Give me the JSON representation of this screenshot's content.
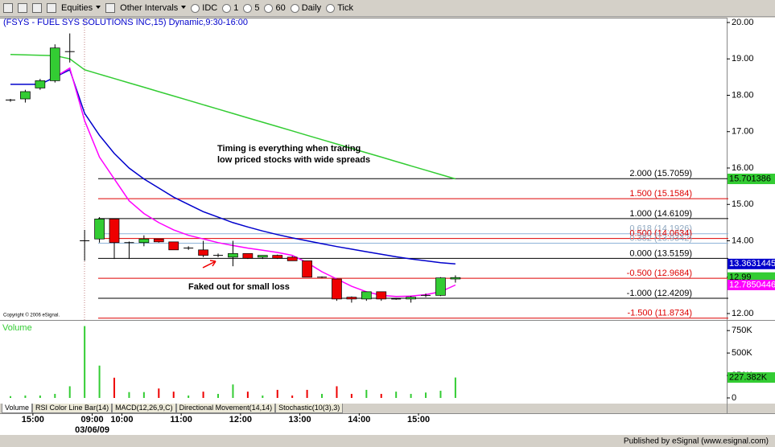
{
  "toolbar": {
    "items": [
      "Equities",
      "Other Intervals",
      "IDC",
      "1",
      "5",
      "60",
      "Daily",
      "Tick"
    ]
  },
  "chart_data": [
    {
      "type": "candlestick",
      "title": "(FSYS - FUEL SYS SOLUTIONS INC,15) Dynamic,9:30-16:00",
      "categories": [
        null,
        null,
        "15:00",
        null,
        null,
        null,
        "09:00",
        null,
        "10:00",
        null,
        null,
        null,
        "11:00",
        null,
        null,
        null,
        "12:00",
        null,
        null,
        null,
        "13:00",
        null,
        null,
        null,
        "14:00",
        null,
        null,
        null,
        "15:00",
        null,
        null
      ],
      "date_label": "03/06/09",
      "open": [
        17.87,
        17.9,
        18.2,
        18.4,
        19.2,
        14.0,
        14.05,
        14.6,
        13.95,
        13.95,
        14.05,
        13.97,
        13.8,
        13.75,
        13.6,
        13.55,
        13.65,
        13.55,
        13.6,
        13.55,
        13.45,
        13.0,
        12.95,
        12.45,
        12.4,
        12.6,
        12.4,
        12.4,
        12.5,
        12.5,
        12.95
      ],
      "high": [
        17.9,
        18.15,
        18.45,
        19.4,
        19.7,
        14.3,
        14.65,
        14.6,
        13.98,
        14.15,
        14.05,
        13.97,
        13.85,
        14.0,
        13.65,
        14.0,
        13.65,
        13.6,
        13.62,
        13.58,
        13.45,
        13.02,
        12.95,
        12.47,
        12.6,
        12.6,
        12.42,
        12.48,
        12.55,
        13.0,
        13.05
      ],
      "low": [
        17.82,
        17.8,
        18.15,
        18.35,
        18.9,
        13.45,
        13.95,
        13.5,
        13.5,
        13.85,
        13.95,
        13.75,
        13.75,
        13.55,
        13.55,
        13.3,
        13.5,
        13.5,
        13.5,
        13.45,
        13.0,
        12.98,
        12.35,
        12.3,
        12.35,
        12.35,
        12.38,
        12.3,
        12.45,
        12.48,
        12.85
      ],
      "close": [
        17.87,
        18.1,
        18.4,
        19.3,
        19.2,
        14.0,
        14.6,
        13.95,
        13.95,
        14.05,
        13.97,
        13.75,
        13.8,
        13.6,
        13.6,
        13.65,
        13.52,
        13.6,
        13.52,
        13.45,
        13.0,
        13.0,
        12.4,
        12.4,
        12.6,
        12.4,
        12.4,
        12.45,
        12.5,
        12.98,
        12.99
      ],
      "up_color": "#33cc33",
      "down_color": "#ee0000",
      "series": [
        {
          "color": "#33cc33",
          "values": [
            19.12,
            19.11,
            19.1,
            19.09,
            19.0,
            18.7,
            18.58,
            18.46,
            18.34,
            18.22,
            18.1,
            17.98,
            17.86,
            17.74,
            17.62,
            17.5,
            17.38,
            17.26,
            17.14,
            17.02,
            16.9,
            16.78,
            16.66,
            16.54,
            16.42,
            16.3,
            16.18,
            16.06,
            15.94,
            15.82,
            15.701386
          ]
        },
        {
          "color": "#0000cc",
          "values": [
            18.3,
            18.3,
            18.3,
            18.5,
            18.7,
            17.5,
            16.9,
            16.4,
            16.0,
            15.7,
            15.45,
            15.2,
            15.0,
            14.8,
            14.65,
            14.5,
            14.38,
            14.27,
            14.17,
            14.08,
            14.0,
            13.92,
            13.84,
            13.77,
            13.7,
            13.63,
            13.56,
            13.5,
            13.45,
            13.4,
            13.3631445
          ]
        },
        {
          "color": "#ff00ff",
          "values": [
            null,
            null,
            null,
            18.5,
            18.75,
            17.3,
            16.3,
            15.7,
            15.1,
            14.75,
            14.5,
            14.3,
            14.15,
            14.05,
            13.95,
            13.87,
            13.8,
            13.74,
            13.68,
            13.6,
            13.4,
            13.15,
            12.95,
            12.75,
            12.6,
            12.5,
            12.47,
            12.48,
            12.52,
            12.6,
            12.7850446
          ]
        }
      ],
      "ylim": [
        11.82,
        20.18
      ],
      "yticks": [
        {
          "value": 20,
          "label": "20.00"
        },
        {
          "value": 19,
          "label": "19.00"
        },
        {
          "value": 18,
          "label": "18.00"
        },
        {
          "value": 17,
          "label": "17.00"
        },
        {
          "value": 16,
          "label": "16.00"
        },
        {
          "value": 15,
          "label": "15.00"
        },
        {
          "value": 14,
          "label": "14.00"
        },
        {
          "value": 13,
          "label": "13.00"
        },
        {
          "value": 12,
          "label": "12.00"
        }
      ],
      "levels": [
        {
          "label": "2.000 (15.7059)",
          "value": 15.7059,
          "color": "#000000"
        },
        {
          "label": "1.500 (15.1584)",
          "value": 15.1584,
          "color": "#dd0000"
        },
        {
          "label": "1.000 (14.6109)",
          "value": 14.6109,
          "color": "#000000"
        },
        {
          "label": "0.618 (14.1926)",
          "value": 14.1926,
          "color": "#8fb4d8"
        },
        {
          "label": "0.500 (14.0634)",
          "value": 14.0634,
          "color": "#dd0000"
        },
        {
          "label": "0.382 (13.9342)",
          "value": 13.9342,
          "color": "#8fb4d8"
        },
        {
          "label": "0.000 (13.5159)",
          "value": 13.5159,
          "color": "#000000"
        },
        {
          "label": "-0.500 (12.9684)",
          "value": 12.9684,
          "color": "#dd0000"
        },
        {
          "label": "-1.000 (12.4209)",
          "value": 12.4209,
          "color": "#000000"
        },
        {
          "label": "-1.500 (11.8734)",
          "value": 11.8734,
          "color": "#dd0000"
        }
      ],
      "annotations": [
        "Timing is everything when trading",
        "low priced stocks with wide spreads",
        "Faked out for small loss"
      ],
      "copyright": "Copyright © 2006 eSignal."
    },
    {
      "type": "bar",
      "title": "Volume",
      "values": [
        20000,
        27000,
        27000,
        45000,
        130000,
        800000,
        360000,
        225000,
        65000,
        65000,
        105000,
        70000,
        27000,
        70000,
        45000,
        150000,
        70000,
        27000,
        90000,
        27000,
        90000,
        45000,
        130000,
        45000,
        90000,
        45000,
        70000,
        45000,
        60000,
        80000,
        227382
      ],
      "value_labels": [
        null,
        null,
        null,
        null,
        null,
        null,
        null,
        null,
        null,
        null,
        null,
        null,
        null,
        null,
        null,
        null,
        null,
        null,
        null,
        null,
        null,
        null,
        null,
        null,
        null,
        null,
        null,
        null,
        null,
        null,
        "227.382K"
      ],
      "ylim": [
        -45000,
        850000
      ],
      "yticks": [
        {
          "value": 750000,
          "label": "750K"
        },
        {
          "value": 500000,
          "label": "500K"
        },
        {
          "value": 250000,
          "label": "250K"
        },
        0
      ]
    }
  ],
  "tabs": [
    "Volume",
    "RSI Color Line Bar(14)",
    "MACD(12,26,9,C)",
    "Directional Movement(14,14)",
    "Stochastic(10(3),3)"
  ],
  "footer": "Published by eSignal (www.esignal.com)"
}
